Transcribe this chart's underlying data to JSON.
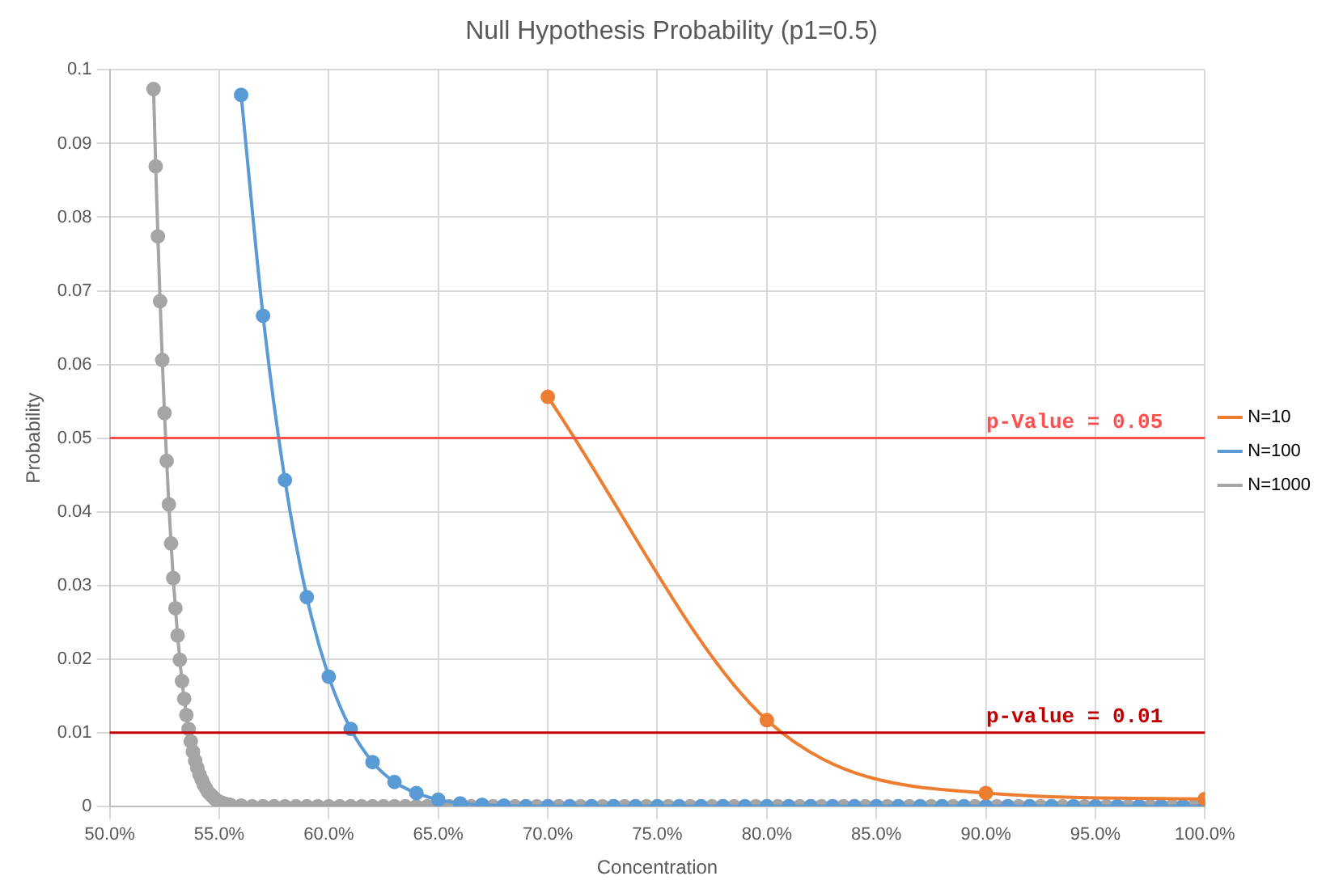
{
  "chart_data": {
    "type": "line",
    "title": "Null Hypothesis Probability (p1=0.5)",
    "xlabel": "Concentration",
    "ylabel": "Probability",
    "xlim": [
      50,
      100
    ],
    "xticks": [
      {
        "value": 50,
        "label": "50.0%"
      },
      {
        "value": 55,
        "label": "55.0%"
      },
      {
        "value": 60,
        "label": "60.0%"
      },
      {
        "value": 65,
        "label": "65.0%"
      },
      {
        "value": 70,
        "label": "70.0%"
      },
      {
        "value": 75,
        "label": "75.0%"
      },
      {
        "value": 80,
        "label": "80.0%"
      },
      {
        "value": 85,
        "label": "85.0%"
      },
      {
        "value": 90,
        "label": "90.0%"
      },
      {
        "value": 95,
        "label": "95.0%"
      },
      {
        "value": 100,
        "label": "100.0%"
      }
    ],
    "ylim": [
      0,
      0.1
    ],
    "yticks": [
      0,
      0.01,
      0.02,
      0.03,
      0.04,
      0.05,
      0.06,
      0.07,
      0.08,
      0.09,
      0.1
    ],
    "grid": true,
    "legend": "right",
    "marker": "circle",
    "line_style": "solid",
    "series": [
      {
        "name": "N=10",
        "color": "#ed7d31",
        "x": [
          70,
          80,
          90,
          100
        ],
        "values": [
          0.0556,
          0.0117,
          0.0018,
          0.001
        ]
      },
      {
        "name": "N=100",
        "color": "#5b9bd5",
        "x": [
          56,
          57,
          58,
          59,
          60,
          61,
          62,
          63,
          64,
          65,
          66,
          67,
          68,
          69,
          70,
          71,
          72,
          73,
          74,
          75,
          76,
          77,
          78,
          79,
          80,
          81,
          82,
          83,
          84,
          85,
          86,
          87,
          88,
          89,
          90,
          91,
          92,
          93,
          94,
          95,
          96,
          97,
          98,
          99,
          100
        ],
        "values": [
          0.0966,
          0.0666,
          0.0443,
          0.0284,
          0.0176,
          0.0105,
          0.006,
          0.0033,
          0.0018,
          0.0009,
          0.0004,
          0.0002,
          0.0001,
          0,
          0,
          0,
          0,
          0,
          0,
          0,
          0,
          0,
          0,
          0,
          0,
          0,
          0,
          0,
          0,
          0,
          0,
          0,
          0,
          0,
          0,
          0,
          0,
          0,
          0,
          0,
          0,
          0,
          0,
          0,
          0
        ]
      },
      {
        "name": "N=1000",
        "color": "#a5a5a5",
        "x": [
          52,
          52.1,
          52.2,
          52.3,
          52.4,
          52.5,
          52.6,
          52.7,
          52.8,
          52.9,
          53,
          53.1,
          53.2,
          53.3,
          53.4,
          53.5,
          53.6,
          53.7,
          53.8,
          53.9,
          54,
          54.1,
          54.2,
          54.3,
          54.4,
          54.5,
          54.6,
          54.7,
          54.8,
          54.9,
          55,
          55.1,
          55.2,
          55.3,
          55.4,
          55.5,
          56,
          56.5,
          57,
          57.5,
          58,
          58.5,
          59,
          59.5,
          60,
          60.5,
          61,
          61.5,
          62,
          62.5,
          63,
          63.5,
          64,
          64.5,
          65,
          65.5,
          66,
          66.5,
          67,
          67.5,
          68,
          68.5,
          69,
          69.5,
          70,
          70.5,
          71,
          71.5,
          72,
          72.5,
          73,
          73.5,
          74,
          74.5,
          75,
          75.5,
          76,
          76.5,
          77,
          77.5,
          78,
          78.5,
          79,
          79.5,
          80,
          80.5,
          81,
          81.5,
          82,
          82.5,
          83,
          83.5,
          84,
          84.5,
          85,
          85.5,
          86,
          86.5,
          87,
          87.5,
          88,
          88.5,
          89,
          89.5,
          90,
          90.5,
          91,
          91.5,
          92,
          92.5,
          93,
          93.5,
          94,
          94.5,
          95,
          95.5,
          96,
          96.5,
          97,
          97.5,
          98,
          98.5,
          99,
          99.5,
          100
        ],
        "values": [
          0.0974,
          0.0869,
          0.0774,
          0.0686,
          0.0606,
          0.0534,
          0.0469,
          0.041,
          0.0357,
          0.031,
          0.0269,
          0.0232,
          0.0199,
          0.017,
          0.0146,
          0.0124,
          0.0105,
          0.0088,
          0.0074,
          0.0062,
          0.0052,
          0.0043,
          0.0036,
          0.0029,
          0.0024,
          0.0019,
          0.0016,
          0.0013,
          0.001,
          0.0008,
          0.0006,
          0.0005,
          0.0004,
          0.0003,
          0.0002,
          0.0002,
          0.0001,
          0,
          0,
          0,
          0,
          0,
          0,
          0,
          0,
          0,
          0,
          0,
          0,
          0,
          0,
          0,
          0,
          0,
          0,
          0,
          0,
          0,
          0,
          0,
          0,
          0,
          0,
          0,
          0,
          0,
          0,
          0,
          0,
          0,
          0,
          0,
          0,
          0,
          0,
          0,
          0,
          0,
          0,
          0,
          0,
          0,
          0,
          0,
          0,
          0,
          0,
          0,
          0,
          0,
          0,
          0,
          0,
          0,
          0,
          0,
          0,
          0,
          0,
          0,
          0,
          0,
          0,
          0,
          0,
          0,
          0,
          0,
          0,
          0,
          0,
          0,
          0,
          0,
          0,
          0,
          0,
          0,
          0,
          0,
          0,
          0,
          0,
          0,
          0
        ]
      }
    ],
    "ref_lines": [
      {
        "axis": "y",
        "value": 0.05,
        "label": "p-Value = 0.05",
        "color": "#ff5050"
      },
      {
        "axis": "y",
        "value": 0.01,
        "label": "p-value = 0.01",
        "color": "#c00000"
      }
    ]
  }
}
